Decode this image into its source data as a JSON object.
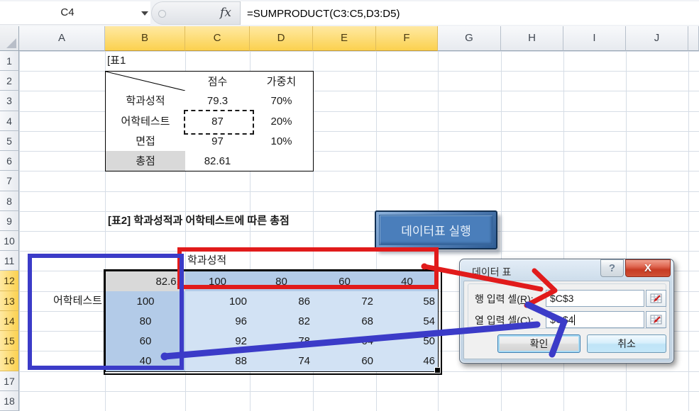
{
  "formula_bar": {
    "name_box": "C4",
    "fx_label": "fx",
    "formula": "=SUMPRODUCT(C3:C5,D3:D5)"
  },
  "grid": {
    "col_headers": [
      "A",
      "B",
      "C",
      "D",
      "E",
      "F",
      "G",
      "H",
      "I",
      "J"
    ],
    "selected_cols": [
      "B",
      "C",
      "D",
      "E",
      "F"
    ],
    "row_headers": [
      "1",
      "2",
      "3",
      "4",
      "5",
      "6",
      "7",
      "8",
      "9",
      "10",
      "11",
      "12",
      "13",
      "14",
      "15",
      "16",
      "17",
      "18"
    ],
    "selected_rows": [
      "12",
      "13",
      "14",
      "15",
      "16"
    ]
  },
  "table1": {
    "tag": "[표1",
    "headers": [
      "점수",
      "가중치"
    ],
    "rows": [
      {
        "label": "학과성적",
        "score": "79.3",
        "weight": "70%"
      },
      {
        "label": "어학테스트",
        "score": "87",
        "weight": "20%"
      },
      {
        "label": "면접",
        "score": "97",
        "weight": "10%"
      },
      {
        "label": "총점",
        "score": "82.61",
        "weight": ""
      }
    ]
  },
  "section2": {
    "title": "[표2] 학과성적과 어학테스트에 따른 총점",
    "run_button": "데이터표 실행"
  },
  "table2": {
    "row_axis_label": "학과성적",
    "col_axis_label": "어학테스트",
    "corner_value": "82.61",
    "col_header_values": [
      "100",
      "80",
      "60",
      "40"
    ],
    "row_header_values": [
      "100",
      "80",
      "60",
      "40"
    ],
    "cells": [
      [
        "100",
        "86",
        "72",
        "58"
      ],
      [
        "96",
        "82",
        "68",
        "54"
      ],
      [
        "92",
        "78",
        "64",
        "50"
      ],
      [
        "88",
        "74",
        "60",
        "46"
      ]
    ]
  },
  "dialog": {
    "title": "데이터 표",
    "help_label": "?",
    "close_label": "X",
    "row_input": {
      "label_pre": "행 입력 셀(",
      "label_key": "R",
      "label_post": "):",
      "value": "$C$3"
    },
    "col_input": {
      "label_pre": "열 입력 셀(",
      "label_key": "C",
      "label_post": "):",
      "value": "$C$4"
    },
    "ok_label": "확인",
    "cancel_label": "취소"
  },
  "annotations": {
    "red_color": "#e11b1b",
    "blue_color": "#3b3bc8"
  },
  "colors": {
    "selected_header_yellow": "#fcd14f",
    "table_header_fill": "#b3cbe8",
    "table_cell_fill": "#d2e2f4",
    "gray_fill": "#d9d9d9",
    "run_button_blue": "#4a7ebb"
  }
}
